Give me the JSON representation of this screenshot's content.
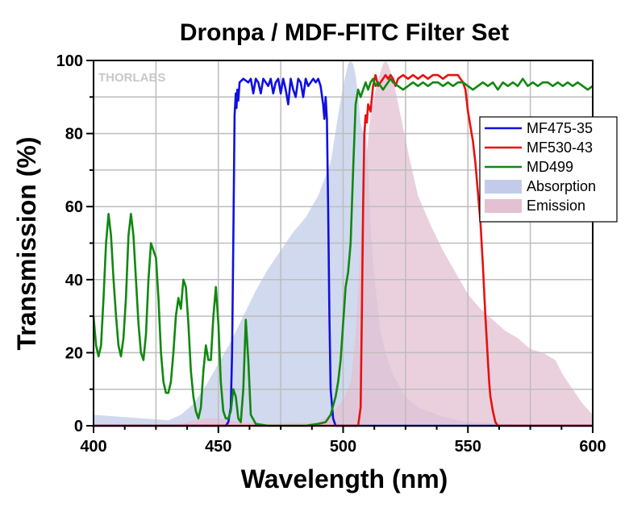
{
  "chart_data": {
    "type": "line",
    "title": "Dronpa / MDF-FITC Filter Set",
    "xlabel": "Wavelength (nm)",
    "ylabel": "Transmission (%)",
    "xlim": [
      400,
      600
    ],
    "ylim": [
      0,
      100
    ],
    "xticks": [
      400,
      450,
      500,
      550,
      600
    ],
    "yticks": [
      0,
      20,
      40,
      60,
      80,
      100
    ],
    "grid": true,
    "legend_position": "right",
    "watermark": "THORLABS",
    "series": [
      {
        "name": "MF475-35",
        "style": "line",
        "color": "#1010e0",
        "points": [
          [
            400,
            0
          ],
          [
            453,
            0
          ],
          [
            454,
            1
          ],
          [
            455,
            5
          ],
          [
            455.5,
            20
          ],
          [
            456,
            50
          ],
          [
            456.5,
            85
          ],
          [
            457,
            91
          ],
          [
            457.3,
            87
          ],
          [
            457.6,
            92
          ],
          [
            458,
            89
          ],
          [
            458.5,
            94
          ],
          [
            460,
            95
          ],
          [
            462,
            94
          ],
          [
            463,
            95
          ],
          [
            464,
            91
          ],
          [
            465,
            95
          ],
          [
            466,
            94
          ],
          [
            467,
            91
          ],
          [
            468,
            95
          ],
          [
            470,
            93
          ],
          [
            471,
            95
          ],
          [
            472,
            91
          ],
          [
            473,
            94
          ],
          [
            474,
            95
          ],
          [
            475,
            91
          ],
          [
            476,
            95
          ],
          [
            477,
            92
          ],
          [
            478,
            88
          ],
          [
            479,
            95
          ],
          [
            480,
            92
          ],
          [
            481,
            90
          ],
          [
            482,
            95
          ],
          [
            483,
            94
          ],
          [
            484,
            90
          ],
          [
            485,
            95
          ],
          [
            486,
            93
          ],
          [
            487,
            94
          ],
          [
            488,
            95
          ],
          [
            489,
            94
          ],
          [
            490,
            95
          ],
          [
            491,
            93
          ],
          [
            492,
            88
          ],
          [
            492.5,
            84
          ],
          [
            493,
            90
          ],
          [
            493.5,
            84
          ],
          [
            494,
            60
          ],
          [
            494.5,
            30
          ],
          [
            495,
            10
          ],
          [
            496,
            2
          ],
          [
            497,
            0
          ],
          [
            600,
            0
          ]
        ]
      },
      {
        "name": "MF530-43",
        "style": "line",
        "color": "#e81010",
        "points": [
          [
            400,
            0
          ],
          [
            506,
            0
          ],
          [
            507,
            5
          ],
          [
            507.5,
            30
          ],
          [
            508,
            60
          ],
          [
            508.5,
            80
          ],
          [
            509,
            85
          ],
          [
            509.5,
            83
          ],
          [
            510,
            88
          ],
          [
            511,
            86
          ],
          [
            512,
            93
          ],
          [
            513,
            96
          ],
          [
            514,
            93
          ],
          [
            515,
            94
          ],
          [
            516,
            95
          ],
          [
            517,
            96
          ],
          [
            518,
            95
          ],
          [
            519,
            96
          ],
          [
            520,
            95
          ],
          [
            521,
            93
          ],
          [
            522,
            95
          ],
          [
            524,
            96
          ],
          [
            526,
            95
          ],
          [
            528,
            96
          ],
          [
            530,
            95
          ],
          [
            532,
            96
          ],
          [
            534,
            95
          ],
          [
            536,
            96
          ],
          [
            538,
            96
          ],
          [
            540,
            95
          ],
          [
            542,
            96
          ],
          [
            544,
            96
          ],
          [
            546,
            96
          ],
          [
            547,
            95
          ],
          [
            548,
            94
          ],
          [
            549,
            92
          ],
          [
            550,
            86
          ],
          [
            551,
            82
          ],
          [
            552,
            78
          ],
          [
            553,
            72
          ],
          [
            554,
            64
          ],
          [
            555,
            56
          ],
          [
            556,
            44
          ],
          [
            557,
            30
          ],
          [
            558,
            18
          ],
          [
            558.5,
            12
          ],
          [
            559,
            8
          ],
          [
            560,
            4
          ],
          [
            561,
            1
          ],
          [
            562,
            0
          ],
          [
            600,
            0
          ]
        ]
      },
      {
        "name": "MD499",
        "style": "line",
        "color": "#108810",
        "points": [
          [
            400,
            30
          ],
          [
            401,
            22
          ],
          [
            402,
            19
          ],
          [
            403,
            22
          ],
          [
            404,
            35
          ],
          [
            405,
            50
          ],
          [
            406,
            58
          ],
          [
            407,
            52
          ],
          [
            408,
            40
          ],
          [
            409,
            30
          ],
          [
            410,
            22
          ],
          [
            411,
            19
          ],
          [
            412,
            24
          ],
          [
            413,
            35
          ],
          [
            414,
            52
          ],
          [
            415,
            58
          ],
          [
            416,
            52
          ],
          [
            417,
            40
          ],
          [
            418,
            28
          ],
          [
            419,
            20
          ],
          [
            420,
            18
          ],
          [
            421,
            25
          ],
          [
            422,
            40
          ],
          [
            423,
            50
          ],
          [
            424,
            48
          ],
          [
            425,
            46
          ],
          [
            426,
            35
          ],
          [
            427,
            20
          ],
          [
            428,
            12
          ],
          [
            429,
            9
          ],
          [
            430,
            9
          ],
          [
            431,
            12
          ],
          [
            432,
            20
          ],
          [
            433,
            30
          ],
          [
            434,
            35
          ],
          [
            435,
            32
          ],
          [
            436,
            40
          ],
          [
            437,
            38
          ],
          [
            438,
            28
          ],
          [
            439,
            15
          ],
          [
            440,
            8
          ],
          [
            441,
            4
          ],
          [
            442,
            2
          ],
          [
            443,
            5
          ],
          [
            444,
            15
          ],
          [
            445,
            22
          ],
          [
            446,
            18
          ],
          [
            447,
            18
          ],
          [
            448,
            30
          ],
          [
            449,
            38
          ],
          [
            450,
            28
          ],
          [
            451,
            12
          ],
          [
            452,
            4
          ],
          [
            453,
            2
          ],
          [
            454,
            2
          ],
          [
            455,
            4
          ],
          [
            456,
            10
          ],
          [
            457,
            8
          ],
          [
            458,
            2
          ],
          [
            459,
            1
          ],
          [
            460,
            10
          ],
          [
            461,
            29
          ],
          [
            462,
            18
          ],
          [
            463,
            3
          ],
          [
            465,
            0.5
          ],
          [
            470,
            0
          ],
          [
            480,
            0
          ],
          [
            485,
            0
          ],
          [
            490,
            0.5
          ],
          [
            493,
            1
          ],
          [
            495,
            3
          ],
          [
            497,
            8
          ],
          [
            498,
            12
          ],
          [
            499,
            18
          ],
          [
            500,
            28
          ],
          [
            501,
            38
          ],
          [
            502,
            42
          ],
          [
            503,
            50
          ],
          [
            504,
            70
          ],
          [
            505,
            88
          ],
          [
            506,
            92
          ],
          [
            507,
            90
          ],
          [
            508,
            92
          ],
          [
            509,
            94
          ],
          [
            510,
            92
          ],
          [
            511,
            94
          ],
          [
            512,
            95
          ],
          [
            513,
            93
          ],
          [
            514,
            94
          ],
          [
            515,
            93
          ],
          [
            516,
            92
          ],
          [
            517,
            93
          ],
          [
            518,
            94
          ],
          [
            519,
            95
          ],
          [
            520,
            94
          ],
          [
            522,
            93
          ],
          [
            524,
            92
          ],
          [
            526,
            93
          ],
          [
            528,
            94
          ],
          [
            530,
            93
          ],
          [
            532,
            94
          ],
          [
            534,
            93
          ],
          [
            536,
            94
          ],
          [
            538,
            94
          ],
          [
            540,
            93
          ],
          [
            542,
            94
          ],
          [
            544,
            93
          ],
          [
            546,
            94
          ],
          [
            548,
            94
          ],
          [
            550,
            93
          ],
          [
            552,
            92
          ],
          [
            554,
            93
          ],
          [
            556,
            94
          ],
          [
            558,
            93
          ],
          [
            560,
            94
          ],
          [
            562,
            92
          ],
          [
            564,
            94
          ],
          [
            566,
            93
          ],
          [
            568,
            94
          ],
          [
            570,
            93
          ],
          [
            572,
            95
          ],
          [
            574,
            93
          ],
          [
            576,
            94
          ],
          [
            578,
            93
          ],
          [
            580,
            94
          ],
          [
            582,
            94
          ],
          [
            584,
            93
          ],
          [
            586,
            94
          ],
          [
            588,
            93
          ],
          [
            590,
            94
          ],
          [
            592,
            93
          ],
          [
            594,
            94
          ],
          [
            596,
            93
          ],
          [
            598,
            92
          ],
          [
            600,
            93
          ]
        ]
      },
      {
        "name": "Absorption",
        "style": "area",
        "color": "#c2ccea",
        "points": [
          [
            400,
            3
          ],
          [
            420,
            2
          ],
          [
            430,
            1.5
          ],
          [
            435,
            3
          ],
          [
            440,
            6
          ],
          [
            445,
            11
          ],
          [
            450,
            17
          ],
          [
            455,
            23
          ],
          [
            460,
            30
          ],
          [
            465,
            37
          ],
          [
            470,
            43
          ],
          [
            475,
            48
          ],
          [
            480,
            53
          ],
          [
            485,
            57
          ],
          [
            490,
            63
          ],
          [
            495,
            72
          ],
          [
            498,
            85
          ],
          [
            500,
            93
          ],
          [
            501,
            96
          ],
          [
            502,
            99
          ],
          [
            503,
            100
          ],
          [
            504,
            99
          ],
          [
            505,
            96
          ],
          [
            506,
            90
          ],
          [
            507,
            83
          ],
          [
            508,
            80
          ],
          [
            509,
            83
          ],
          [
            510,
            70
          ],
          [
            511,
            55
          ],
          [
            512,
            45
          ],
          [
            513,
            38
          ],
          [
            514,
            32
          ],
          [
            515,
            26
          ],
          [
            517,
            20
          ],
          [
            520,
            14
          ],
          [
            525,
            8
          ],
          [
            530,
            5
          ],
          [
            540,
            2.5
          ],
          [
            550,
            1
          ],
          [
            570,
            0.3
          ],
          [
            600,
            0
          ]
        ]
      },
      {
        "name": "Emission",
        "style": "area",
        "color": "#e3c0d2",
        "points": [
          [
            400,
            0
          ],
          [
            430,
            0
          ],
          [
            435,
            0.5
          ],
          [
            440,
            1.5
          ],
          [
            445,
            2
          ],
          [
            450,
            2
          ],
          [
            455,
            1.5
          ],
          [
            460,
            1
          ],
          [
            470,
            0.5
          ],
          [
            490,
            1
          ],
          [
            495,
            3
          ],
          [
            500,
            7
          ],
          [
            503,
            12
          ],
          [
            505,
            25
          ],
          [
            507,
            50
          ],
          [
            509,
            72
          ],
          [
            511,
            85
          ],
          [
            513,
            92
          ],
          [
            515,
            97
          ],
          [
            516,
            99
          ],
          [
            517,
            100
          ],
          [
            518,
            99
          ],
          [
            520,
            95
          ],
          [
            523,
            85
          ],
          [
            526,
            75
          ],
          [
            530,
            63
          ],
          [
            535,
            55
          ],
          [
            540,
            48
          ],
          [
            545,
            42
          ],
          [
            550,
            36
          ],
          [
            555,
            32
          ],
          [
            560,
            29
          ],
          [
            565,
            26
          ],
          [
            570,
            24
          ],
          [
            575,
            21
          ],
          [
            580,
            20
          ],
          [
            585,
            18
          ],
          [
            588,
            14
          ],
          [
            592,
            10
          ],
          [
            596,
            6
          ],
          [
            600,
            3
          ]
        ]
      }
    ]
  }
}
